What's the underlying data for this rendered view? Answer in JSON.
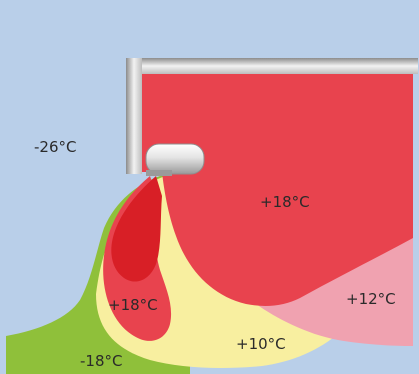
{
  "zones": {
    "outside": {
      "label": "-26°C",
      "color": "#b9cfe9"
    },
    "room": {
      "label": "+18°C",
      "color": "#e8434e"
    },
    "warm": {
      "label": "+12°C",
      "color": "#f0a2b0"
    },
    "mild": {
      "label": "+10°C",
      "color": "#f8efa0"
    },
    "cold": {
      "label": "-18°C",
      "color": "#8fc03a"
    },
    "jet_core": {
      "label": "",
      "color": "#d81f26"
    },
    "jet_lower": {
      "label": "+18°C",
      "color": "#e8434e"
    }
  },
  "colors": {
    "frame_dark": "#9e9e9e",
    "frame_light": "#e6e6e6"
  }
}
